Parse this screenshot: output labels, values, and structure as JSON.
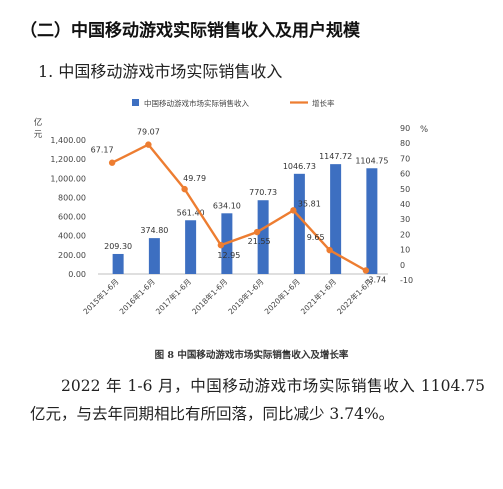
{
  "heading": "（二）中国移动游戏实际销售收入及用户规模",
  "subheading": "1. 中国移动游戏市场实际销售收入",
  "chart_data": {
    "type": "bar+line",
    "categories": [
      "2015年1-6月",
      "2016年1-6月",
      "2017年1-6月",
      "2018年1-6月",
      "2019年1-6月",
      "2020年1-6月",
      "2021年1-6月",
      "2022年1-6月"
    ],
    "series": [
      {
        "name": "中国移动游戏市场实际销售收入",
        "kind": "bar",
        "axis": "left",
        "color": "#3d6fc1",
        "values": [
          209.3,
          374.8,
          561.4,
          634.1,
          770.73,
          1046.73,
          1147.72,
          1104.75
        ],
        "labels": [
          "209.30",
          "374.80",
          "561.40",
          "634.10",
          "770.73",
          "1046.73",
          "1147.72",
          "1104.75"
        ]
      },
      {
        "name": "增长率",
        "kind": "line",
        "axis": "right",
        "color": "#ed7d31",
        "values": [
          67.17,
          79.07,
          49.79,
          12.95,
          21.55,
          35.81,
          9.65,
          -3.74
        ],
        "labels": [
          "67.17",
          "79.07",
          "49.79",
          "12.95",
          "21.55",
          "35.81",
          "9.65",
          "-3.74"
        ]
      }
    ],
    "y_left": {
      "unit": "亿元",
      "ylim": [
        0,
        1400
      ],
      "ticks": [
        "0.00",
        "200.00",
        "400.00",
        "600.00",
        "800.00",
        "1,000.00",
        "1,200.00",
        "1,400.00"
      ]
    },
    "y_right": {
      "unit": "%",
      "ylim": [
        -10,
        90
      ],
      "ticks": [
        "-10",
        "0",
        "10",
        "20",
        "30",
        "40",
        "50",
        "60",
        "70",
        "80",
        "90"
      ]
    },
    "legend": "top",
    "grid": false
  },
  "caption": "图 8  中国移动游戏市场实际销售收入及增长率",
  "paragraph": "2022 年 1-6 月，中国移动游戏市场实际销售收入 1104.75 亿元，与去年同期相比有所回落，同比减少 3.74%。"
}
